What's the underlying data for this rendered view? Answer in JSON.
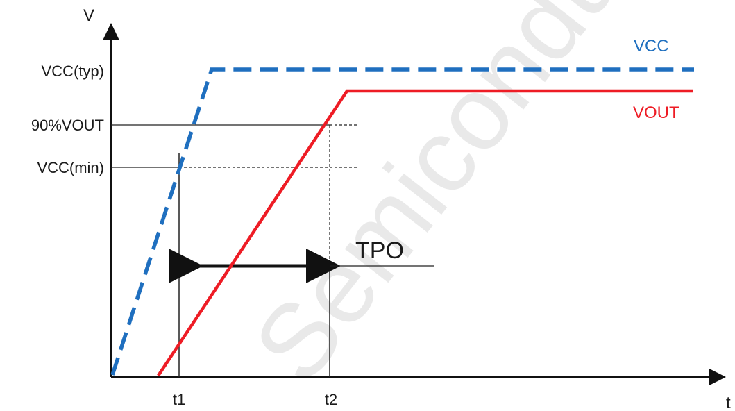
{
  "axes": {
    "y_label": "V",
    "x_label": "t"
  },
  "levels": {
    "vcc_typ": "VCC(typ)",
    "vout_90": "90%VOUT",
    "vcc_min": "VCC(min)"
  },
  "time_marks": {
    "t1": "t1",
    "t2": "t2"
  },
  "interval": {
    "label": "TPO"
  },
  "series": {
    "vcc": {
      "label": "VCC",
      "color": "#1f6fbf",
      "style": "dashed"
    },
    "vout": {
      "label": "VOUT",
      "color": "#ee1c25",
      "style": "solid"
    }
  },
  "watermark": "Semiconduct"
}
